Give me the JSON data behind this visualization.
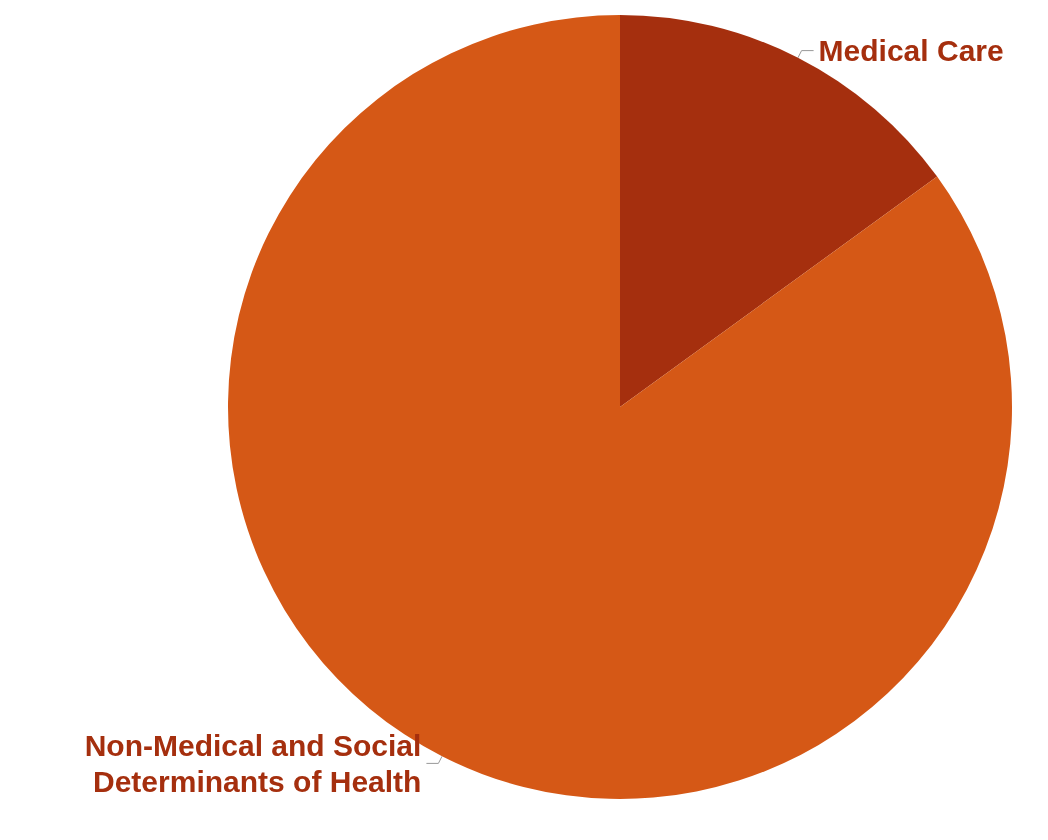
{
  "chart_data": {
    "type": "pie",
    "categories": [
      "Medical Care",
      "Non-Medical and Social\nDeterminants of Health"
    ],
    "values": [
      15,
      85
    ],
    "colors": [
      "#a52f0e",
      "#d55816"
    ],
    "legend": false
  }
}
